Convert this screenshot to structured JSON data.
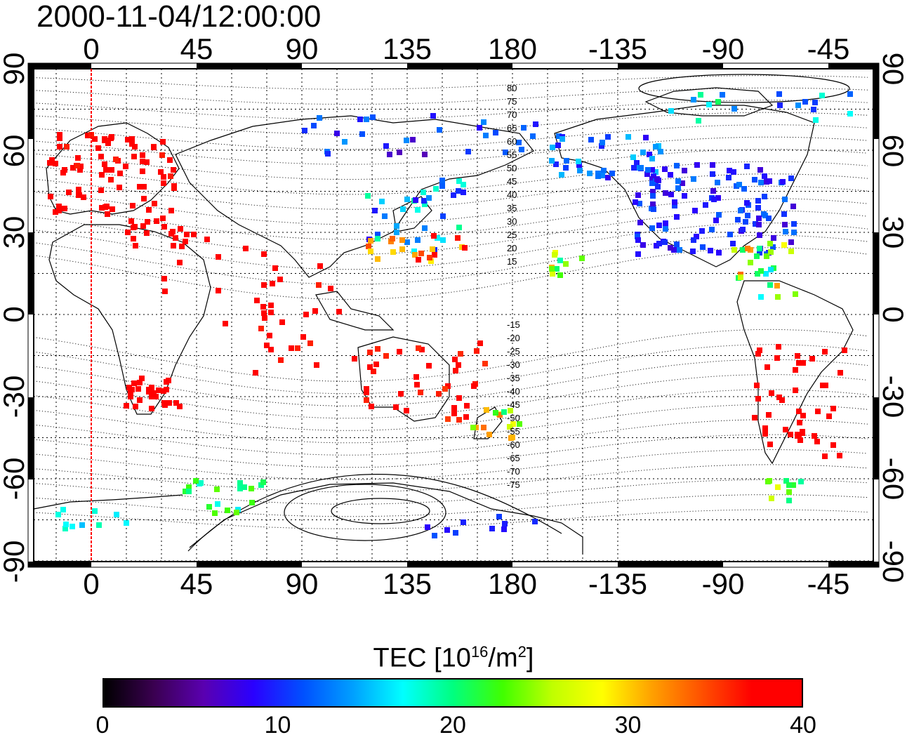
{
  "title": "2000-11-04/12:00:00",
  "map": {
    "top_lon_ticks": [
      "0",
      "45",
      "90",
      "135",
      "180",
      "-135",
      "-90",
      "-45"
    ],
    "bottom_lon_ticks": [
      "0",
      "45",
      "90",
      "135",
      "180",
      "-135",
      "-90",
      "-45"
    ],
    "left_lat_ticks": [
      "90",
      "60",
      "30",
      "0",
      "-30",
      "-60",
      "-90"
    ],
    "right_lat_ticks": [
      "90",
      "60",
      "30",
      "0",
      "-30",
      "-60",
      "-90"
    ],
    "magnetic_lat_labels_north": [
      "80",
      "75",
      "70",
      "65",
      "60",
      "55",
      "50",
      "45",
      "40",
      "35",
      "30",
      "25",
      "20",
      "15"
    ],
    "magnetic_lat_labels_south": [
      "-15",
      "-20",
      "-25",
      "-30",
      "-35",
      "-40",
      "-45",
      "-50",
      "-55",
      "-60",
      "-65",
      "-70",
      "-75"
    ],
    "marker_line_color": "#ff0000"
  },
  "colorbar": {
    "title_main": "TEC  [10",
    "title_sup1": "16",
    "title_mid": "/m",
    "title_sup2": "2",
    "title_end": "]",
    "ticks": [
      "0",
      "10",
      "20",
      "30",
      "40"
    ],
    "range": [
      0,
      40
    ],
    "colormap_stops": [
      "#000000",
      "#3a0050",
      "#5a00b0",
      "#2a00ff",
      "#0050ff",
      "#00a0ff",
      "#00ffff",
      "#00ff80",
      "#40ff00",
      "#c0ff00",
      "#ffff00",
      "#ffa000",
      "#ff5000",
      "#ff0000",
      "#ff0000"
    ]
  }
}
